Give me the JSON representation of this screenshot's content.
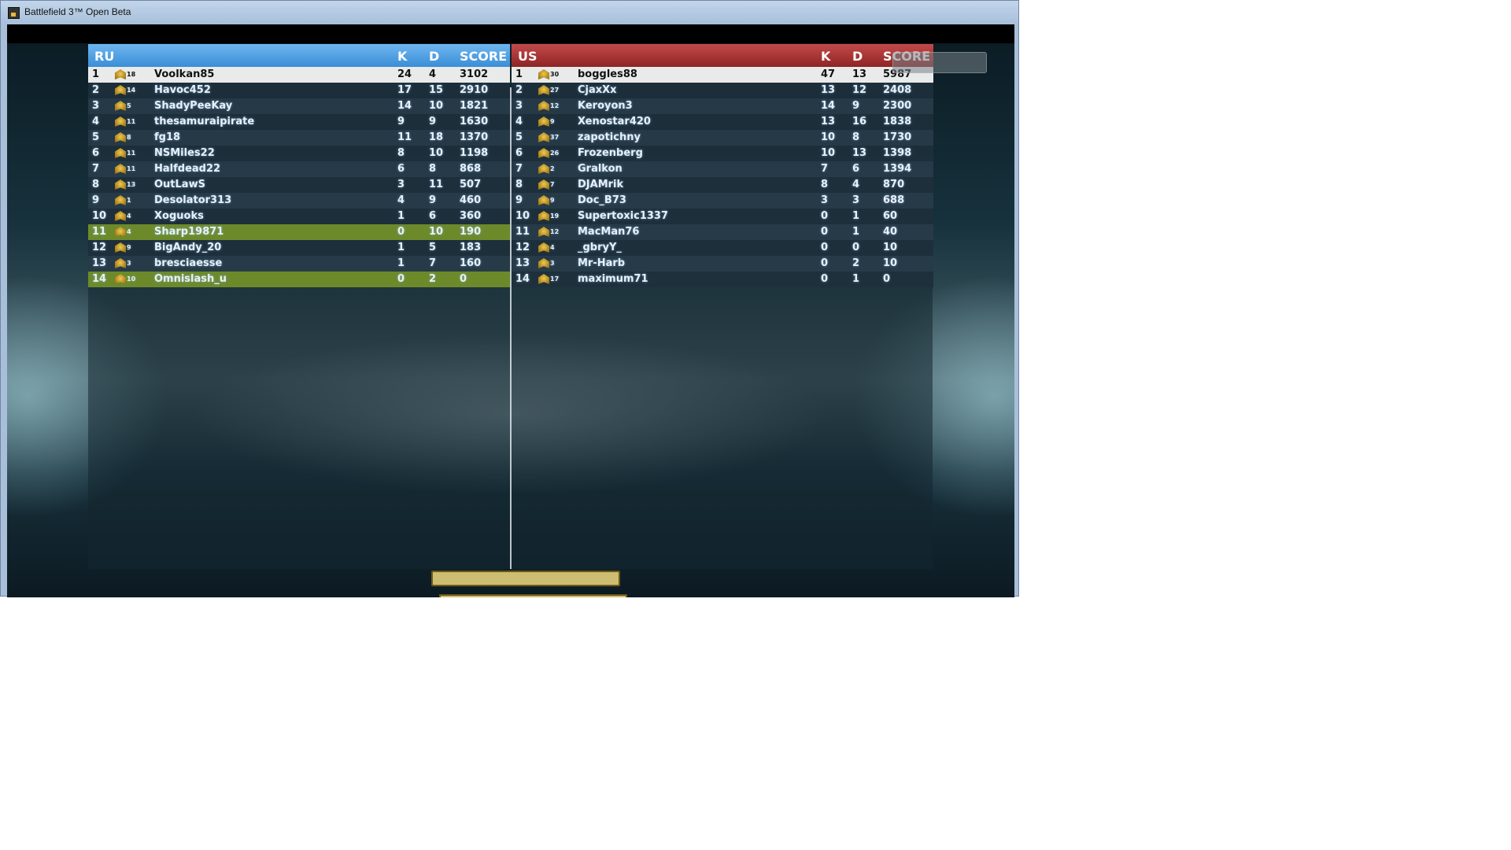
{
  "window": {
    "title": "Battlefield 3™ Open Beta",
    "icon": "battlefield-app-icon"
  },
  "columns": {
    "k": "K",
    "d": "D",
    "score": "SCORE"
  },
  "teams": [
    {
      "name": "RU",
      "color": "#3a8ed6",
      "players": [
        {
          "rank": "1",
          "level": "18",
          "name": "Voolkan85",
          "k": "24",
          "d": "4",
          "score": "3102",
          "highlight": "self"
        },
        {
          "rank": "2",
          "level": "14",
          "name": "Havoc452",
          "k": "17",
          "d": "15",
          "score": "2910"
        },
        {
          "rank": "3",
          "level": "5",
          "name": "ShadyPeeKay",
          "k": "14",
          "d": "10",
          "score": "1821"
        },
        {
          "rank": "4",
          "level": "11",
          "name": "thesamuraipirate",
          "k": "9",
          "d": "9",
          "score": "1630"
        },
        {
          "rank": "5",
          "level": "8",
          "name": "fg18",
          "k": "11",
          "d": "18",
          "score": "1370"
        },
        {
          "rank": "6",
          "level": "11",
          "name": "NSMiles22",
          "k": "8",
          "d": "10",
          "score": "1198"
        },
        {
          "rank": "7",
          "level": "11",
          "name": "Halfdead22",
          "k": "6",
          "d": "8",
          "score": "868"
        },
        {
          "rank": "8",
          "level": "13",
          "name": "OutLawS",
          "k": "3",
          "d": "11",
          "score": "507"
        },
        {
          "rank": "9",
          "level": "1",
          "name": "Desolator313",
          "k": "4",
          "d": "9",
          "score": "460"
        },
        {
          "rank": "10",
          "level": "4",
          "name": "Xoguoks",
          "k": "1",
          "d": "6",
          "score": "360"
        },
        {
          "rank": "11",
          "level": "4",
          "name": "Sharp19871",
          "k": "0",
          "d": "10",
          "score": "190",
          "highlight": "squad"
        },
        {
          "rank": "12",
          "level": "9",
          "name": "BigAndy_20",
          "k": "1",
          "d": "5",
          "score": "183"
        },
        {
          "rank": "13",
          "level": "3",
          "name": "bresciaesse",
          "k": "1",
          "d": "7",
          "score": "160"
        },
        {
          "rank": "14",
          "level": "10",
          "name": "Omnislash_u",
          "k": "0",
          "d": "2",
          "score": "0",
          "highlight": "squad"
        }
      ]
    },
    {
      "name": "US",
      "color": "#a83030",
      "players": [
        {
          "rank": "1",
          "level": "30",
          "name": "boggles88",
          "k": "47",
          "d": "13",
          "score": "5987",
          "highlight": "self"
        },
        {
          "rank": "2",
          "level": "27",
          "name": "CjaxXx",
          "k": "13",
          "d": "12",
          "score": "2408"
        },
        {
          "rank": "3",
          "level": "12",
          "name": "Keroyon3",
          "k": "14",
          "d": "9",
          "score": "2300"
        },
        {
          "rank": "4",
          "level": "9",
          "name": "Xenostar420",
          "k": "13",
          "d": "16",
          "score": "1838"
        },
        {
          "rank": "5",
          "level": "37",
          "name": "zapotichny",
          "k": "10",
          "d": "8",
          "score": "1730"
        },
        {
          "rank": "6",
          "level": "26",
          "name": "Frozenberg",
          "k": "10",
          "d": "13",
          "score": "1398"
        },
        {
          "rank": "7",
          "level": "2",
          "name": "Gralkon",
          "k": "7",
          "d": "6",
          "score": "1394"
        },
        {
          "rank": "8",
          "level": "7",
          "name": "DJAMrik",
          "k": "8",
          "d": "4",
          "score": "870"
        },
        {
          "rank": "9",
          "level": "9",
          "name": "Doc_B73",
          "k": "3",
          "d": "3",
          "score": "688"
        },
        {
          "rank": "10",
          "level": "19",
          "name": "Supertoxic1337",
          "k": "0",
          "d": "1",
          "score": "60"
        },
        {
          "rank": "11",
          "level": "12",
          "name": "MacMan76",
          "k": "0",
          "d": "1",
          "score": "40"
        },
        {
          "rank": "12",
          "level": "4",
          "name": "_gbryY_",
          "k": "0",
          "d": "0",
          "score": "10"
        },
        {
          "rank": "13",
          "level": "3",
          "name": "Mr-Harb",
          "k": "0",
          "d": "2",
          "score": "10"
        },
        {
          "rank": "14",
          "level": "17",
          "name": "maximum71",
          "k": "0",
          "d": "1",
          "score": "0"
        }
      ]
    }
  ]
}
